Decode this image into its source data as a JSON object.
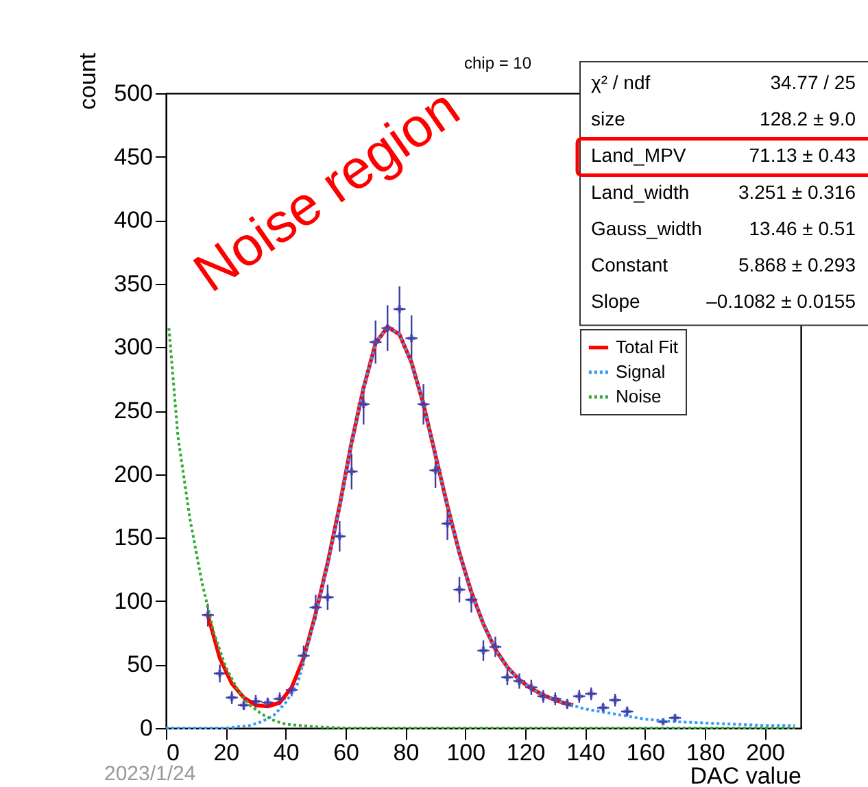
{
  "chart_data": {
    "type": "scatter",
    "title": "chip = 10",
    "xlabel": "DAC value",
    "ylabel": "count",
    "xlim": [
      0,
      212
    ],
    "ylim": [
      0,
      500
    ],
    "xticks": [
      0,
      20,
      40,
      60,
      80,
      100,
      120,
      140,
      160,
      180,
      200
    ],
    "yticks": [
      0,
      50,
      100,
      150,
      200,
      250,
      300,
      350,
      400,
      450,
      500
    ],
    "grid": false,
    "legend": "top right",
    "annotations": [
      "Noise region",
      "2023/1/24",
      "χ² / ndf",
      "34.77 / 25",
      "size",
      "128.2 ± 9.0",
      "Land_MPV",
      "71.13 ± 0.43",
      "Land_width",
      "3.251 ± 0.316",
      "Gauss_width",
      "13.46 ± 0.51",
      "Constant",
      "5.868 ± 0.293",
      "Slope",
      "–0.1082 ± 0.0155"
    ],
    "series": [
      {
        "color": "#3d3da8",
        "marker": "cross",
        "x": [
          14,
          18,
          22,
          26,
          30,
          34,
          38,
          42,
          46,
          50,
          54,
          58,
          62,
          66,
          70,
          74,
          78,
          82,
          86,
          90,
          94,
          98,
          102,
          106,
          110,
          114,
          118,
          122,
          126,
          130,
          134,
          138,
          142,
          146,
          150,
          154,
          166,
          170
        ],
        "values": [
          89,
          43,
          24,
          18,
          21,
          20,
          23,
          30,
          57,
          95,
          103,
          151,
          202,
          255,
          304,
          315,
          330,
          307,
          255,
          203,
          161,
          109,
          101,
          61,
          64,
          40,
          37,
          32,
          25,
          23,
          19,
          25,
          27,
          16,
          22,
          13,
          5,
          8
        ],
        "errors": [
          9,
          7,
          5,
          4,
          5,
          4,
          5,
          5,
          8,
          10,
          10,
          12,
          14,
          16,
          17,
          18,
          18,
          18,
          16,
          14,
          13,
          10,
          10,
          8,
          8,
          6,
          6,
          6,
          5,
          5,
          4,
          5,
          5,
          4,
          5,
          4,
          2,
          3
        ],
        "xerrors": [
          2,
          2,
          2,
          2,
          2,
          2,
          2,
          2,
          2,
          2,
          2,
          2,
          2,
          2,
          2,
          2,
          2,
          2,
          2,
          2,
          2,
          2,
          2,
          2,
          2,
          2,
          2,
          2,
          2,
          2,
          2,
          2,
          2,
          2,
          2,
          2,
          2,
          2
        ]
      },
      {
        "type": "line",
        "name": "Total Fit",
        "color": "#ff0000",
        "line_style": "solid",
        "x": [
          14,
          18,
          22,
          26,
          30,
          34,
          38,
          42,
          46,
          50,
          54,
          58,
          62,
          66,
          70,
          74,
          78,
          82,
          86,
          90,
          94,
          98,
          102,
          106,
          110,
          114,
          118,
          122,
          126,
          130,
          134,
          136
        ],
        "values": [
          89,
          55,
          35,
          24,
          18,
          17,
          20,
          32,
          55,
          90,
          130,
          175,
          225,
          268,
          303,
          316,
          310,
          288,
          255,
          215,
          175,
          138,
          107,
          82,
          62,
          48,
          38,
          31,
          26,
          22,
          19,
          18
        ]
      },
      {
        "type": "line",
        "name": "Signal",
        "color": "#3399ff",
        "line_style": "dotted",
        "x": [
          0,
          20,
          28,
          32,
          36,
          40,
          44,
          46,
          50,
          54,
          58,
          62,
          66,
          70,
          74,
          78,
          82,
          86,
          90,
          94,
          98,
          102,
          106,
          110,
          114,
          118,
          122,
          126,
          130,
          134,
          140,
          150,
          160,
          170,
          180,
          190,
          200,
          210
        ],
        "values": [
          0,
          0,
          2,
          5,
          10,
          20,
          35,
          53,
          89,
          129,
          174,
          225,
          268,
          303,
          316,
          310,
          288,
          255,
          215,
          175,
          138,
          107,
          82,
          62,
          48,
          38,
          31,
          26,
          22,
          19,
          15,
          11,
          7,
          5,
          4,
          3,
          2,
          2
        ]
      },
      {
        "type": "line",
        "name": "Noise",
        "color": "#33aa33",
        "line_style": "dotted",
        "x": [
          1,
          4,
          8,
          12,
          16,
          20,
          24,
          28,
          32,
          36,
          40,
          50,
          60,
          210
        ],
        "values": [
          315,
          230,
          165,
          115,
          75,
          48,
          30,
          18,
          11,
          6,
          3,
          1,
          0,
          0
        ]
      }
    ]
  }
}
